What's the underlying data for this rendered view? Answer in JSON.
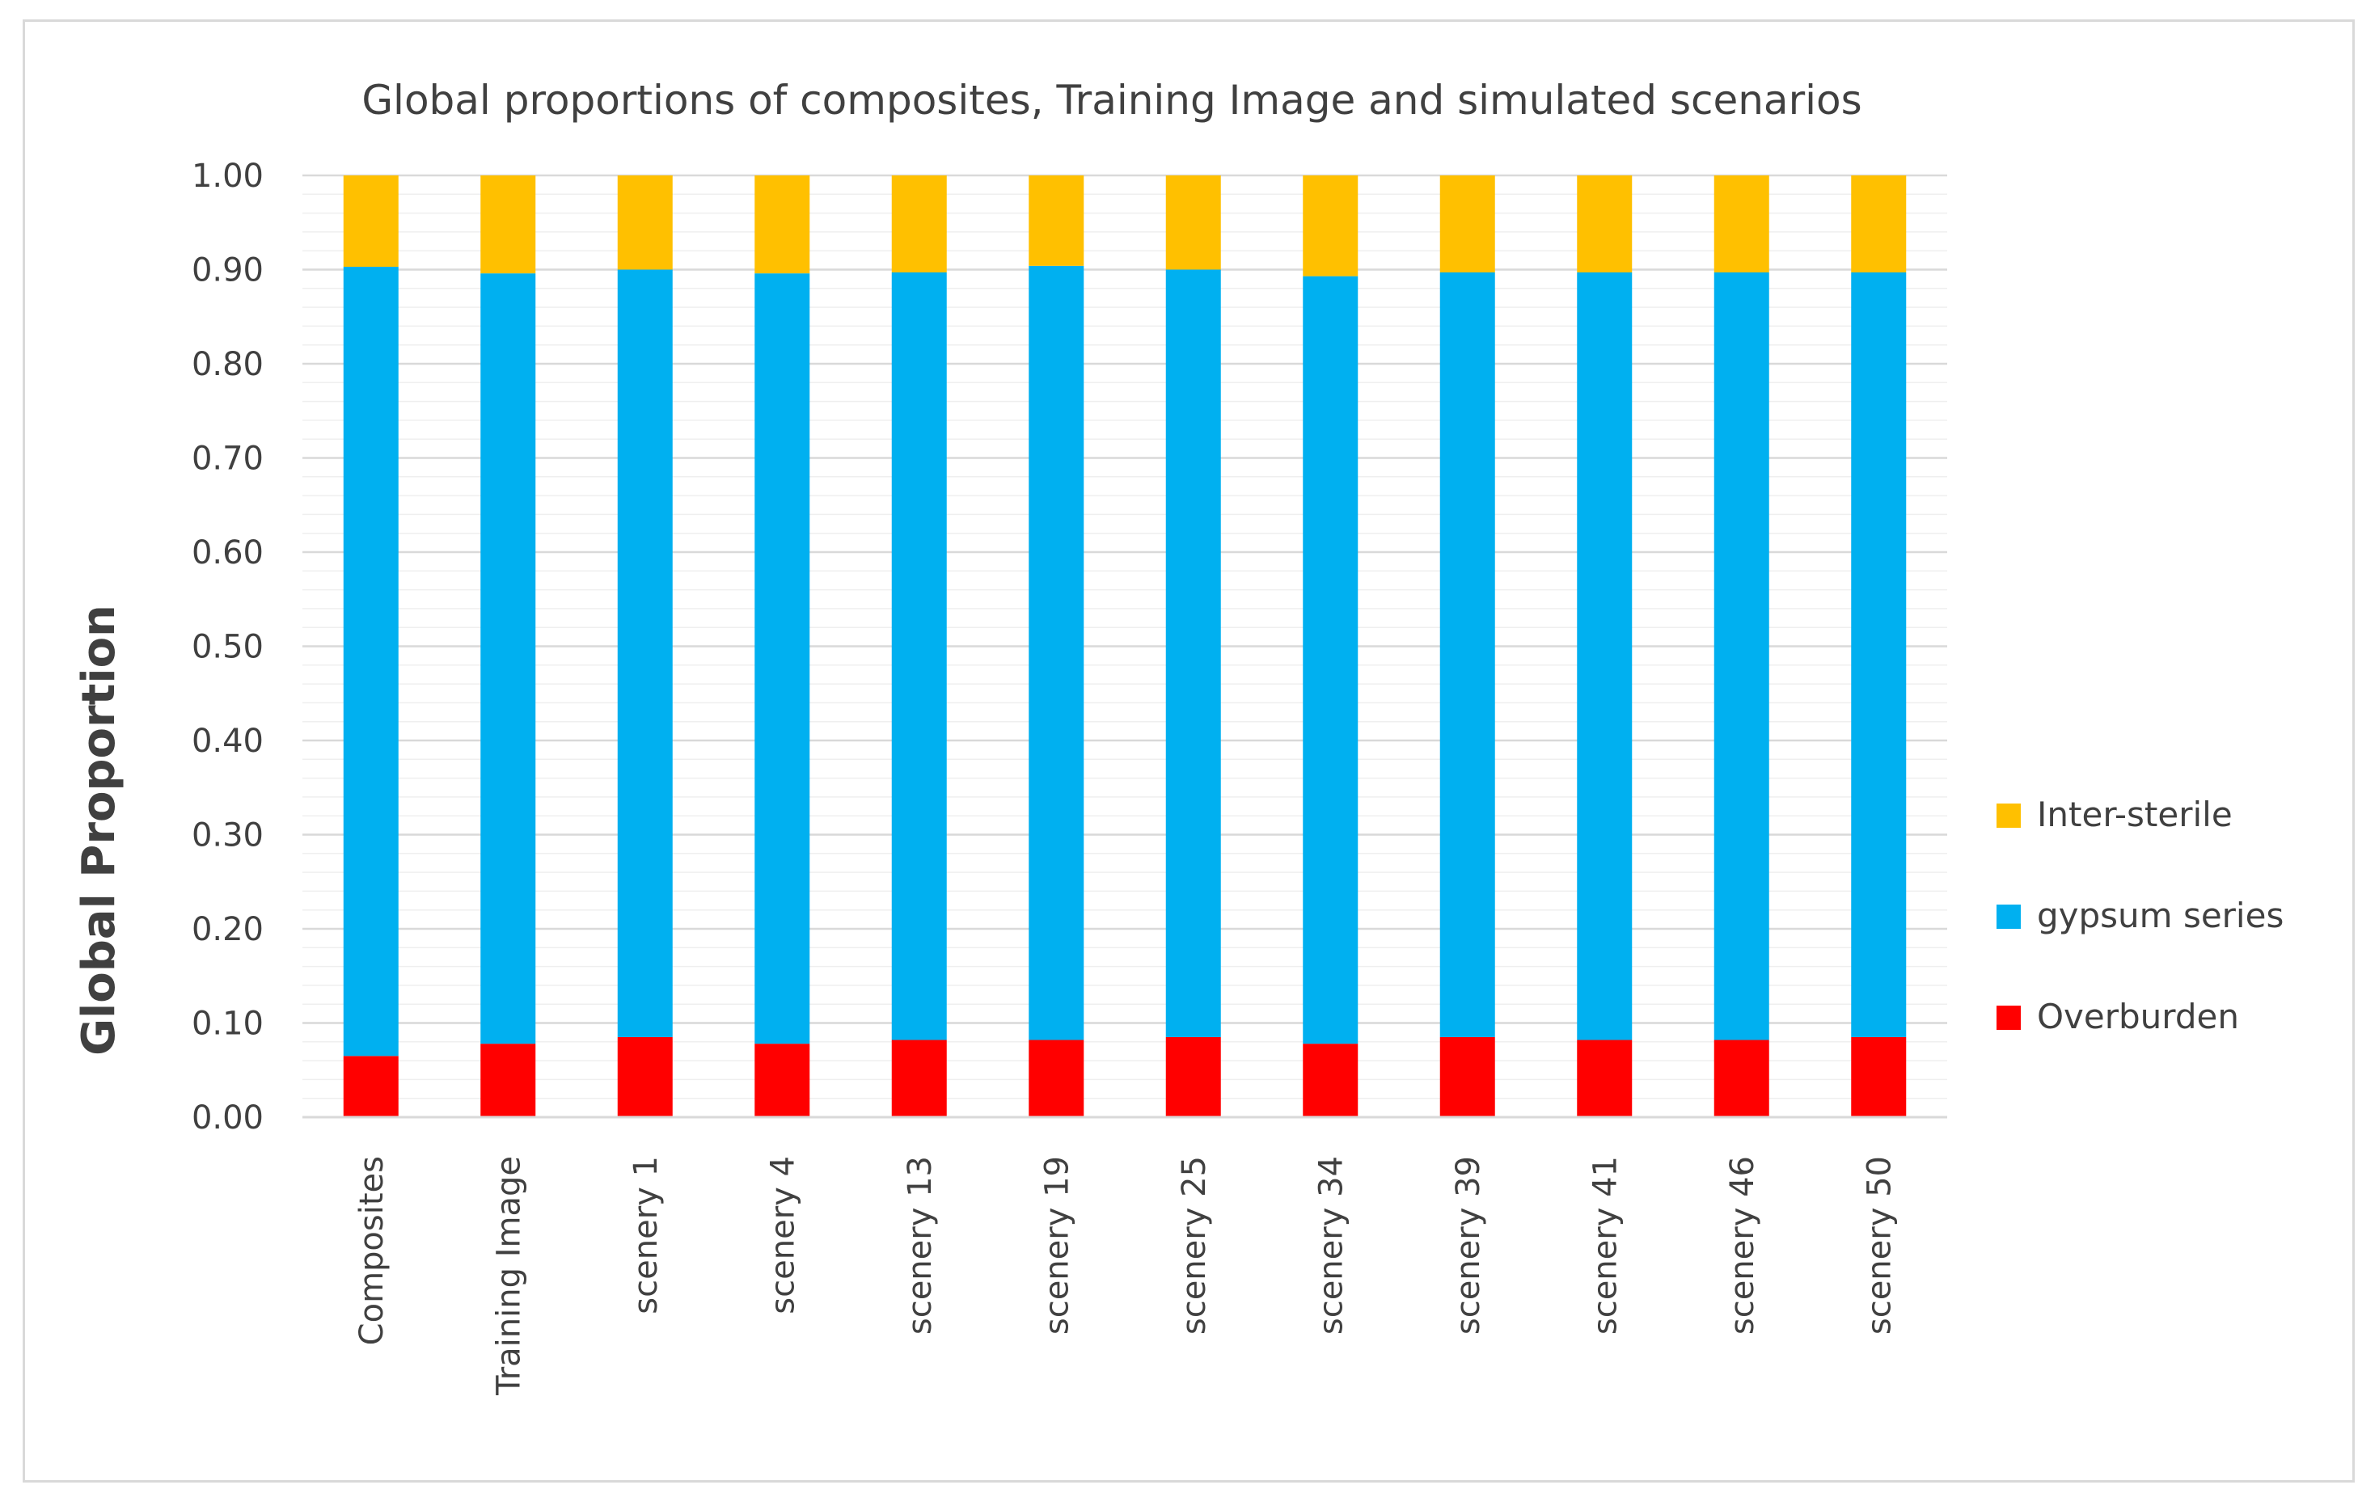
{
  "chart_data": {
    "type": "bar",
    "stacked": true,
    "title": "Global proportions of composites, Training Image and simulated scenarios",
    "xlabel": "",
    "ylabel": "Global Proportion",
    "ylim": [
      0,
      1
    ],
    "ytick_labels": [
      "0.00",
      "0.10",
      "0.20",
      "0.30",
      "0.40",
      "0.50",
      "0.60",
      "0.70",
      "0.80",
      "0.90",
      "1.00"
    ],
    "grid": "horizontal",
    "legend_position": "right",
    "categories": [
      "Composites",
      "Training Image",
      "scenery 1",
      "scenery 4",
      "scenery 13",
      "scenery 19",
      "scenery 25",
      "scenery 34",
      "scenery 39",
      "scenery 41",
      "scenery 46",
      "scenery 50"
    ],
    "series": [
      {
        "name": "Overburden",
        "color": "#ff0000",
        "values": [
          0.065,
          0.078,
          0.085,
          0.078,
          0.082,
          0.082,
          0.085,
          0.078,
          0.085,
          0.082,
          0.082,
          0.085
        ]
      },
      {
        "name": "gypsum series",
        "color": "#00b0f0",
        "values": [
          0.838,
          0.818,
          0.815,
          0.818,
          0.815,
          0.822,
          0.815,
          0.815,
          0.812,
          0.815,
          0.815,
          0.812
        ]
      },
      {
        "name": "Inter-sterile",
        "color": "#ffc000",
        "values": [
          0.097,
          0.104,
          0.1,
          0.104,
          0.103,
          0.096,
          0.1,
          0.107,
          0.103,
          0.103,
          0.103,
          0.103
        ]
      }
    ],
    "legend_order": [
      "Inter-sterile",
      "gypsum series",
      "Overburden"
    ]
  }
}
